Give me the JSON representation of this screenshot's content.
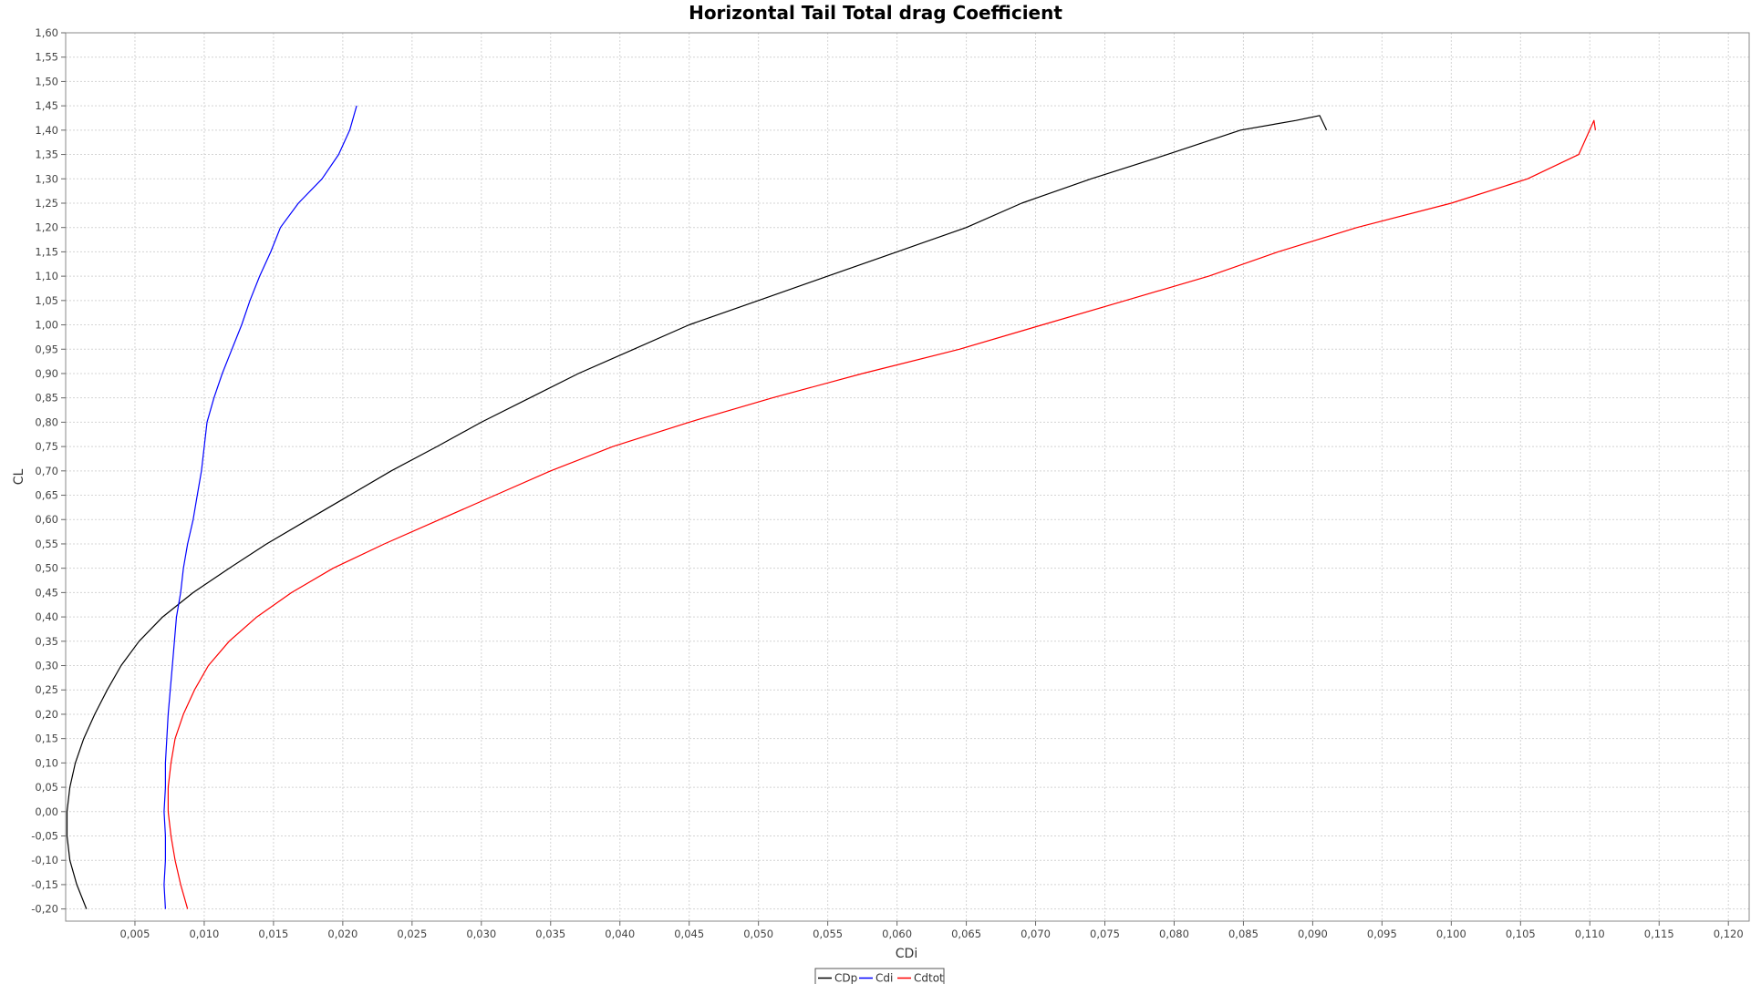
{
  "chart_data": {
    "type": "line",
    "title": "Horizontal Tail Total drag Coefficient",
    "xlabel": "CDi",
    "ylabel": "CL",
    "xlim": [
      0.0,
      0.1215
    ],
    "ylim": [
      -0.225,
      1.6
    ],
    "xticks": [
      0.005,
      0.01,
      0.015,
      0.02,
      0.025,
      0.03,
      0.035,
      0.04,
      0.045,
      0.05,
      0.055,
      0.06,
      0.065,
      0.07,
      0.075,
      0.08,
      0.085,
      0.09,
      0.095,
      0.1,
      0.105,
      0.11,
      0.115,
      0.12
    ],
    "xtick_labels": [
      "0,005",
      "0,010",
      "0,015",
      "0,020",
      "0,025",
      "0,030",
      "0,035",
      "0,040",
      "0,045",
      "0,050",
      "0,055",
      "0,060",
      "0,065",
      "0,070",
      "0,075",
      "0,080",
      "0,085",
      "0,090",
      "0,095",
      "0,100",
      "0,105",
      "0,110",
      "0,115",
      "0,120"
    ],
    "yticks": [
      -0.2,
      -0.15,
      -0.1,
      -0.05,
      0.0,
      0.05,
      0.1,
      0.15,
      0.2,
      0.25,
      0.3,
      0.35,
      0.4,
      0.45,
      0.5,
      0.55,
      0.6,
      0.65,
      0.7,
      0.75,
      0.8,
      0.85,
      0.9,
      0.95,
      1.0,
      1.05,
      1.1,
      1.15,
      1.2,
      1.25,
      1.3,
      1.35,
      1.4,
      1.45,
      1.5,
      1.55,
      1.6
    ],
    "ytick_labels": [
      "-0,20",
      "-0,15",
      "-0,10",
      "-0,05",
      "0,00",
      "0,05",
      "0,10",
      "0,15",
      "0,20",
      "0,25",
      "0,30",
      "0,35",
      "0,40",
      "0,45",
      "0,50",
      "0,55",
      "0,60",
      "0,65",
      "0,70",
      "0,75",
      "0,80",
      "0,85",
      "0,90",
      "0,95",
      "1,00",
      "1,05",
      "1,10",
      "1,15",
      "1,20",
      "1,25",
      "1,30",
      "1,35",
      "1,40",
      "1,45",
      "1,50",
      "1,55",
      "1,60"
    ],
    "grid": true,
    "legend_position": "bottom-center",
    "series": [
      {
        "name": "CDp",
        "color": "#000000",
        "x": [
          0.0015,
          0.0008,
          0.0003,
          0.0001,
          0.0001,
          0.0003,
          0.0007,
          0.0013,
          0.0021,
          0.003,
          0.004,
          0.0053,
          0.007,
          0.0092,
          0.0118,
          0.0145,
          0.0175,
          0.0205,
          0.0235,
          0.0268,
          0.03,
          0.0335,
          0.037,
          0.041,
          0.045,
          0.05,
          0.055,
          0.06,
          0.065,
          0.069,
          0.074,
          0.0795,
          0.0848,
          0.0888,
          0.0905,
          0.091
        ],
        "y": [
          -0.2,
          -0.15,
          -0.1,
          -0.05,
          0.0,
          0.05,
          0.1,
          0.15,
          0.2,
          0.25,
          0.3,
          0.35,
          0.4,
          0.45,
          0.5,
          0.55,
          0.6,
          0.65,
          0.7,
          0.75,
          0.8,
          0.85,
          0.9,
          0.95,
          1.0,
          1.05,
          1.1,
          1.15,
          1.2,
          1.25,
          1.3,
          1.35,
          1.4,
          1.42,
          1.43,
          1.4
        ]
      },
      {
        "name": "Cdi",
        "color": "#0000ff",
        "x": [
          0.0072,
          0.0071,
          0.0072,
          0.0072,
          0.0071,
          0.0072,
          0.0072,
          0.0073,
          0.0074,
          0.0077,
          0.008,
          0.0083,
          0.0085,
          0.0088,
          0.0092,
          0.0095,
          0.0098,
          0.0102,
          0.0107,
          0.0113,
          0.012,
          0.0127,
          0.0133,
          0.014,
          0.0148,
          0.0155,
          0.0168,
          0.0185,
          0.0197,
          0.0205,
          0.021
        ],
        "y": [
          -0.2,
          -0.15,
          -0.1,
          -0.05,
          0.0,
          0.05,
          0.1,
          0.15,
          0.2,
          0.3,
          0.4,
          0.45,
          0.5,
          0.55,
          0.6,
          0.65,
          0.7,
          0.8,
          0.85,
          0.9,
          0.95,
          1.0,
          1.05,
          1.1,
          1.15,
          1.2,
          1.25,
          1.3,
          1.35,
          1.4,
          1.45
        ]
      },
      {
        "name": "Cdtot",
        "color": "#ff0000",
        "x": [
          0.0088,
          0.0083,
          0.0079,
          0.0076,
          0.0074,
          0.0074,
          0.0076,
          0.0079,
          0.0085,
          0.0093,
          0.0103,
          0.0118,
          0.0138,
          0.0163,
          0.0193,
          0.023,
          0.027,
          0.031,
          0.035,
          0.0395,
          0.045,
          0.051,
          0.0575,
          0.0645,
          0.0705,
          0.0765,
          0.0825,
          0.0875,
          0.0932,
          0.1,
          0.1055,
          0.1092,
          0.1103,
          0.1104
        ],
        "y": [
          -0.2,
          -0.15,
          -0.1,
          -0.05,
          0.0,
          0.05,
          0.1,
          0.15,
          0.2,
          0.25,
          0.3,
          0.35,
          0.4,
          0.45,
          0.5,
          0.55,
          0.6,
          0.65,
          0.7,
          0.75,
          0.8,
          0.85,
          0.9,
          0.95,
          1.0,
          1.05,
          1.1,
          1.15,
          1.2,
          1.25,
          1.3,
          1.35,
          1.42,
          1.4
        ]
      }
    ]
  }
}
